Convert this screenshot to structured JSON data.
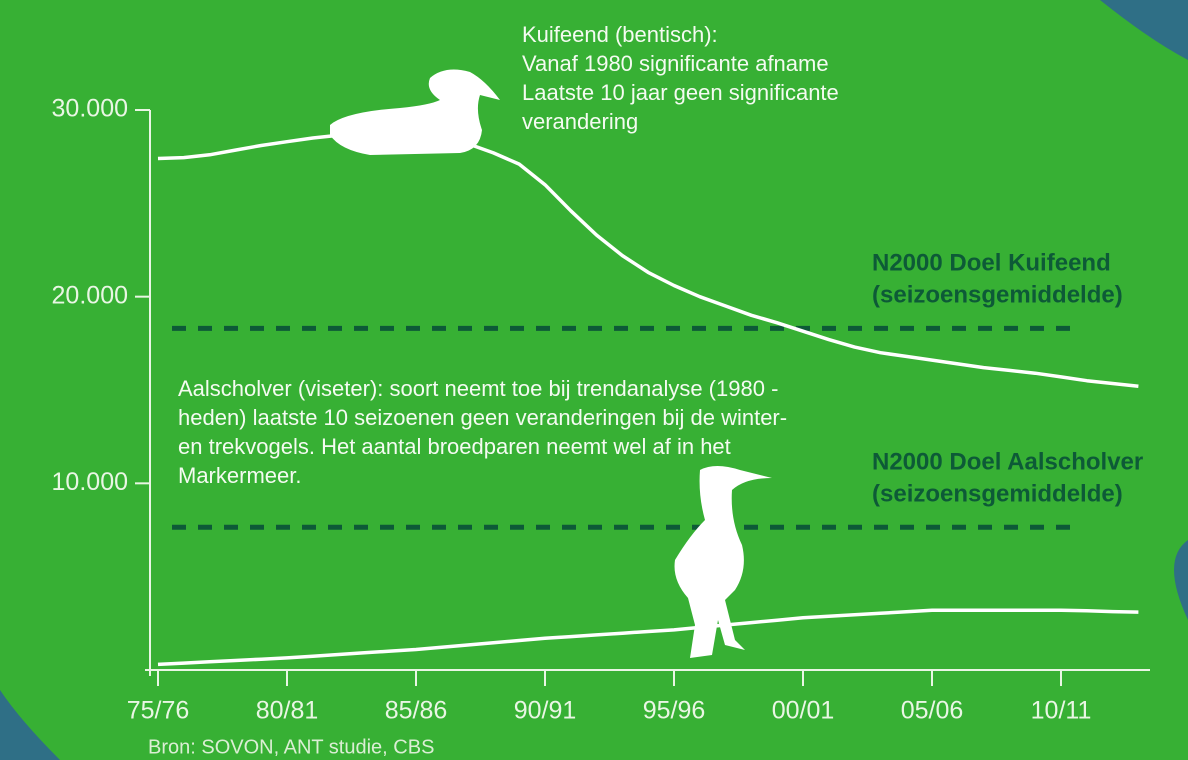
{
  "chart_data": {
    "type": "line",
    "categories": [
      "75/76",
      null,
      null,
      null,
      null,
      "80/81",
      null,
      null,
      null,
      null,
      "85/86",
      null,
      null,
      null,
      null,
      "90/91",
      null,
      null,
      null,
      null,
      "95/96",
      null,
      null,
      null,
      null,
      "00/01",
      null,
      null,
      null,
      null,
      "05/06",
      null,
      null,
      null,
      null,
      "10/11",
      null,
      null,
      null
    ],
    "series": [
      {
        "color": "#ffffff",
        "values": [
          27400,
          27450,
          27600,
          27850,
          28100,
          28300,
          28500,
          28650,
          28800,
          28750,
          28600,
          28450,
          28200,
          27700,
          27100,
          26000,
          24600,
          23300,
          22200,
          21300,
          20600,
          20000,
          19500,
          19000,
          18600,
          18150,
          17700,
          17300,
          17000,
          16800,
          16600,
          16400,
          16200,
          16050,
          15900,
          15700,
          15500,
          15350,
          15200
        ]
      },
      {
        "color": "#ffffff",
        "values": [
          300,
          370,
          440,
          510,
          580,
          650,
          740,
          830,
          920,
          1010,
          1100,
          1220,
          1340,
          1460,
          1580,
          1700,
          1790,
          1880,
          1970,
          2060,
          2150,
          2280,
          2410,
          2540,
          2670,
          2800,
          2880,
          2960,
          3040,
          3120,
          3200,
          3200,
          3200,
          3200,
          3200,
          3200,
          3170,
          3130,
          3100
        ]
      }
    ],
    "targets": [
      {
        "lines": [
          "N2000 Doel Kuifeend",
          "(seizoensgemiddelde)"
        ],
        "value": 18300,
        "color": "#0d5a37"
      },
      {
        "lines": [
          "N2000 Doel Aalscholver",
          "(seizoensgemiddelde)"
        ],
        "value": 7650,
        "color": "#0d5a37"
      }
    ],
    "annotations": [
      [
        "Kuifeend (bentisch):",
        "Vanaf 1980 significante afname",
        "Laatste 10 jaar geen significante",
        "verandering"
      ],
      [
        "Aalscholver (viseter): soort neemt toe bij trendanalyse (1980 -",
        "heden) laatste 10 seizoenen geen veranderingen bij de winter-",
        "en trekvogels. Het aantal broedparen neemt wel af in het",
        "Markermeer."
      ]
    ],
    "source": "Bron: SOVON, ANT studie, CBS",
    "ylim": [
      0,
      30000
    ],
    "yticks": [
      {
        "value": 10000,
        "label": "10.000"
      },
      {
        "value": 20000,
        "label": "20.000"
      },
      {
        "value": 30000,
        "label": "30.000"
      }
    ]
  }
}
